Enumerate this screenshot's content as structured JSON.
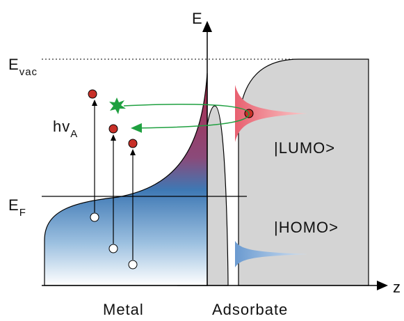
{
  "labels": {
    "axis_e": "E",
    "axis_z": "z",
    "e_vac": {
      "main": "E",
      "sub": "vac"
    },
    "photon": {
      "main": "hv",
      "sub": "A"
    },
    "e_f": {
      "main": "E",
      "sub": "F"
    },
    "lumo": "|LUMO>",
    "homo": "|HOMO>",
    "metal": "Metal",
    "adsorbate": "Adsorbate"
  }
}
